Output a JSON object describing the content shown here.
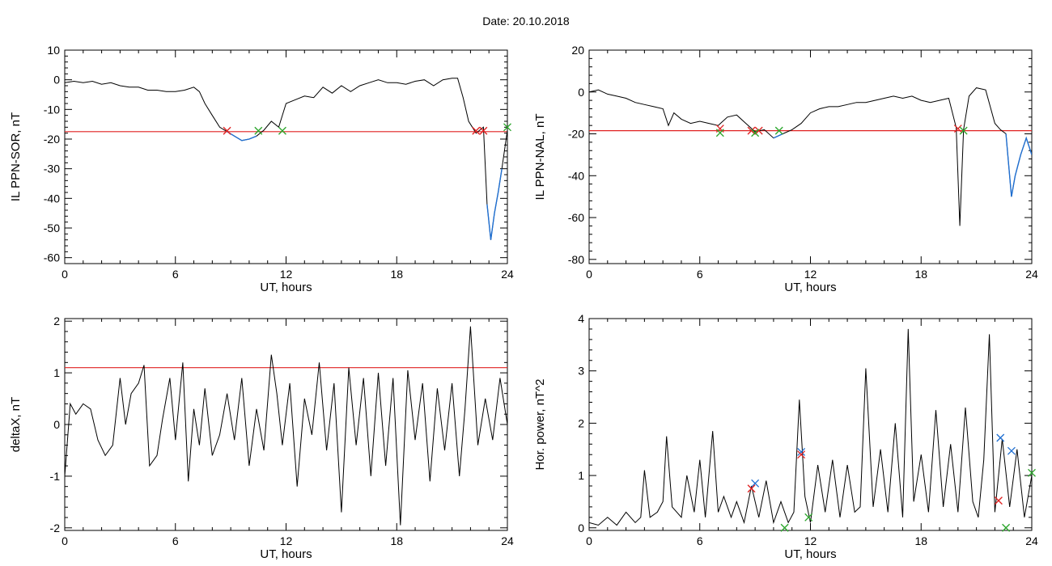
{
  "title": "Date:  20.10.2018",
  "chart_data": [
    {
      "type": "line",
      "panel": "top-left",
      "xlabel": "UT, hours",
      "ylabel": "IL PPN-SOR, nT",
      "xlim": [
        0,
        24
      ],
      "ylim": [
        -62,
        10
      ],
      "xticks": [
        0,
        6,
        12,
        18,
        24
      ],
      "yticks": [
        10,
        0,
        -10,
        -20,
        -30,
        -40,
        -50,
        -60
      ],
      "threshold": -17.5,
      "colors": {
        "line": "#000000",
        "highlight": "#1f6fd1",
        "threshold": "#e02020",
        "markers": [
          "#e02020",
          "#2aa52a",
          "#1f6fd1"
        ]
      },
      "series": [
        {
          "x": [
            0,
            0.5,
            1,
            1.5,
            2,
            2.5,
            3,
            3.5,
            4,
            4.5,
            5,
            5.5,
            6,
            6.5,
            7,
            7.3,
            7.6,
            8,
            8.4,
            8.8,
            9.2,
            9.6,
            10,
            10.4,
            10.8,
            11.2,
            11.6,
            12,
            12.4,
            13,
            13.5,
            14,
            14.5,
            15,
            15.5,
            16,
            16.5,
            17,
            17.5,
            18,
            18.5,
            19,
            19.5,
            20,
            20.5,
            21,
            21.3,
            21.6,
            21.9,
            22.1,
            22.3,
            22.5,
            22.7,
            22.9,
            23.1,
            23.3,
            23.5,
            23.7,
            24
          ],
          "y": [
            -1,
            -0.5,
            -1,
            -0.5,
            -1.5,
            -1,
            -2,
            -2.5,
            -2.5,
            -3.5,
            -3.5,
            -4,
            -4,
            -3.5,
            -2.5,
            -4,
            -8,
            -12,
            -16,
            -17.5,
            -19,
            -20.5,
            -20,
            -19,
            -17,
            -14,
            -16,
            -8,
            -7,
            -5.5,
            -6,
            -2.5,
            -4.5,
            -2,
            -4,
            -2,
            -1,
            0,
            -1,
            -1,
            -1.5,
            -0.5,
            0,
            -2,
            0,
            0.5,
            0.5,
            -6,
            -14,
            -16,
            -18,
            -17,
            -16,
            -42,
            -54,
            -45,
            -38,
            -30,
            -17
          ]
        }
      ],
      "markers": [
        {
          "x": 8.8,
          "y": -17.2,
          "color": "#e02020"
        },
        {
          "x": 10.5,
          "y": -17.2,
          "color": "#2aa52a"
        },
        {
          "x": 11.8,
          "y": -17.2,
          "color": "#2aa52a"
        },
        {
          "x": 22.3,
          "y": -17.2,
          "color": "#e02020"
        },
        {
          "x": 22.7,
          "y": -17.2,
          "color": "#e02020"
        },
        {
          "x": 24.0,
          "y": -16.0,
          "color": "#2aa52a"
        }
      ]
    },
    {
      "type": "line",
      "panel": "top-right",
      "xlabel": "UT, hours",
      "ylabel": "IL PPN-NAL, nT",
      "xlim": [
        0,
        24
      ],
      "ylim": [
        -82,
        20
      ],
      "xticks": [
        0,
        6,
        12,
        18,
        24
      ],
      "yticks": [
        20,
        0,
        -20,
        -40,
        -60,
        -80
      ],
      "threshold": -18.5,
      "colors": {
        "line": "#000000",
        "highlight": "#1f6fd1",
        "threshold": "#e02020",
        "markers": [
          "#e02020",
          "#2aa52a"
        ]
      },
      "series": [
        {
          "x": [
            0,
            0.5,
            1,
            1.5,
            2,
            2.5,
            3,
            3.5,
            4,
            4.3,
            4.6,
            5,
            5.5,
            6,
            6.5,
            7,
            7.5,
            8,
            8.5,
            9,
            9.5,
            10,
            10.5,
            11,
            11.5,
            12,
            12.5,
            13,
            13.5,
            14,
            14.5,
            15,
            15.5,
            16,
            16.5,
            17,
            17.5,
            18,
            18.5,
            19,
            19.5,
            19.9,
            20.1,
            20.3,
            20.6,
            21,
            21.5,
            22,
            22.3,
            22.6,
            22.9,
            23.1,
            23.4,
            23.7,
            24
          ],
          "y": [
            0,
            1,
            -1,
            -2,
            -3,
            -5,
            -6,
            -7,
            -8,
            -16,
            -10,
            -13,
            -15,
            -14,
            -15,
            -16,
            -12,
            -11,
            -15,
            -19,
            -18,
            -22,
            -20,
            -18,
            -15,
            -10,
            -8,
            -7,
            -7,
            -6,
            -5,
            -5,
            -4,
            -3,
            -2,
            -3,
            -2,
            -4,
            -5,
            -4,
            -3,
            -17,
            -64,
            -18,
            -2,
            2,
            1,
            -15,
            -18,
            -20,
            -50,
            -40,
            -30,
            -22,
            -30
          ]
        }
      ],
      "markers": [
        {
          "x": 7.1,
          "y": -17.5,
          "color": "#e02020"
        },
        {
          "x": 7.1,
          "y": -19.5,
          "color": "#2aa52a"
        },
        {
          "x": 8.8,
          "y": -18.5,
          "color": "#e02020"
        },
        {
          "x": 9.2,
          "y": -18.5,
          "color": "#e02020"
        },
        {
          "x": 9.0,
          "y": -19.5,
          "color": "#2aa52a"
        },
        {
          "x": 10.3,
          "y": -18.5,
          "color": "#2aa52a"
        },
        {
          "x": 20.0,
          "y": -17.5,
          "color": "#e02020"
        },
        {
          "x": 20.3,
          "y": -18.5,
          "color": "#2aa52a"
        }
      ]
    },
    {
      "type": "line",
      "panel": "bottom-left",
      "xlabel": "UT, hours",
      "ylabel": "deltaX, nT",
      "xlim": [
        0,
        24
      ],
      "ylim": [
        -2.05,
        2.05
      ],
      "xticks": [
        0,
        6,
        12,
        18,
        24
      ],
      "yticks": [
        2,
        1,
        0,
        -1,
        -2
      ],
      "threshold": 1.1,
      "colors": {
        "line": "#000000",
        "threshold": "#e02020"
      },
      "series": [
        {
          "x": [
            0,
            0.3,
            0.6,
            1,
            1.4,
            1.8,
            2.2,
            2.6,
            3,
            3.3,
            3.6,
            4,
            4.3,
            4.6,
            5,
            5.3,
            5.7,
            6,
            6.4,
            6.7,
            7,
            7.3,
            7.6,
            8,
            8.4,
            8.8,
            9.2,
            9.6,
            10,
            10.4,
            10.8,
            11.2,
            11.5,
            11.8,
            12.2,
            12.6,
            13,
            13.4,
            13.8,
            14.2,
            14.6,
            15,
            15.4,
            15.8,
            16.2,
            16.6,
            17,
            17.4,
            17.8,
            18.2,
            18.6,
            19,
            19.4,
            19.8,
            20.2,
            20.6,
            21,
            21.4,
            21.7,
            22,
            22.4,
            22.8,
            23.2,
            23.6,
            24
          ],
          "y": [
            -1.0,
            0.4,
            0.2,
            0.4,
            0.3,
            -0.3,
            -0.6,
            -0.4,
            0.9,
            0.0,
            0.6,
            0.8,
            1.15,
            -0.8,
            -0.6,
            0.1,
            0.9,
            -0.3,
            1.2,
            -1.1,
            0.3,
            -0.4,
            0.7,
            -0.6,
            -0.2,
            0.6,
            -0.3,
            0.9,
            -0.8,
            0.3,
            -0.5,
            1.35,
            0.6,
            -0.4,
            0.8,
            -1.2,
            0.5,
            -0.2,
            1.2,
            -0.5,
            0.8,
            -1.7,
            1.1,
            -0.4,
            0.9,
            -1.0,
            1.0,
            -0.8,
            0.9,
            -1.95,
            1.05,
            -0.3,
            0.8,
            -1.1,
            0.7,
            -0.5,
            0.8,
            -1.0,
            0.3,
            1.9,
            -0.4,
            0.5,
            -0.3,
            0.9,
            0.0
          ]
        }
      ]
    },
    {
      "type": "line",
      "panel": "bottom-right",
      "xlabel": "UT, hours",
      "ylabel": "Hor. power, nT^2",
      "xlim": [
        0,
        24
      ],
      "ylim": [
        -0.05,
        4.0
      ],
      "xticks": [
        0,
        6,
        12,
        18,
        24
      ],
      "yticks": [
        4,
        3,
        2,
        1,
        0
      ],
      "colors": {
        "line": "#000000",
        "markers": [
          "#1f6fd1",
          "#e02020",
          "#2aa52a"
        ]
      },
      "series": [
        {
          "x": [
            0,
            0.5,
            1,
            1.5,
            2,
            2.5,
            2.8,
            3,
            3.3,
            3.7,
            4,
            4.2,
            4.5,
            5,
            5.3,
            5.7,
            6,
            6.3,
            6.7,
            7,
            7.3,
            7.7,
            8,
            8.4,
            8.8,
            9.2,
            9.6,
            10,
            10.4,
            10.8,
            11.1,
            11.4,
            11.7,
            12,
            12.4,
            12.8,
            13.2,
            13.6,
            14,
            14.4,
            14.7,
            15,
            15.4,
            15.8,
            16.2,
            16.6,
            17,
            17.3,
            17.6,
            18,
            18.4,
            18.8,
            19.2,
            19.6,
            20,
            20.4,
            20.8,
            21.1,
            21.4,
            21.7,
            22,
            22.4,
            22.8,
            23.2,
            23.6,
            24
          ],
          "y": [
            0.1,
            0.05,
            0.2,
            0.05,
            0.3,
            0.1,
            0.2,
            1.1,
            0.2,
            0.3,
            0.5,
            1.75,
            0.4,
            0.2,
            1.0,
            0.3,
            1.3,
            0.2,
            1.85,
            0.3,
            0.6,
            0.2,
            0.5,
            0.1,
            0.8,
            0.2,
            0.9,
            0.1,
            0.5,
            0.1,
            0.3,
            2.45,
            0.6,
            0.1,
            1.2,
            0.3,
            1.3,
            0.2,
            1.2,
            0.3,
            0.4,
            3.05,
            0.4,
            1.5,
            0.3,
            2.0,
            0.2,
            3.8,
            0.5,
            1.4,
            0.3,
            2.25,
            0.4,
            1.6,
            0.3,
            2.3,
            0.5,
            0.2,
            1.3,
            3.7,
            0.3,
            1.7,
            0.4,
            1.5,
            0.2,
            1.0
          ]
        }
      ],
      "markers": [
        {
          "x": 9.0,
          "y": 0.85,
          "color": "#1f6fd1"
        },
        {
          "x": 8.8,
          "y": 0.75,
          "color": "#e02020"
        },
        {
          "x": 10.6,
          "y": 0.0,
          "color": "#2aa52a"
        },
        {
          "x": 11.5,
          "y": 1.45,
          "color": "#1f6fd1"
        },
        {
          "x": 11.5,
          "y": 1.4,
          "color": "#e02020"
        },
        {
          "x": 11.9,
          "y": 0.2,
          "color": "#2aa52a"
        },
        {
          "x": 22.3,
          "y": 1.72,
          "color": "#1f6fd1"
        },
        {
          "x": 22.9,
          "y": 1.47,
          "color": "#1f6fd1"
        },
        {
          "x": 22.2,
          "y": 0.52,
          "color": "#e02020"
        },
        {
          "x": 22.6,
          "y": 0.0,
          "color": "#2aa52a"
        },
        {
          "x": 24.0,
          "y": 1.05,
          "color": "#2aa52a"
        }
      ]
    }
  ]
}
